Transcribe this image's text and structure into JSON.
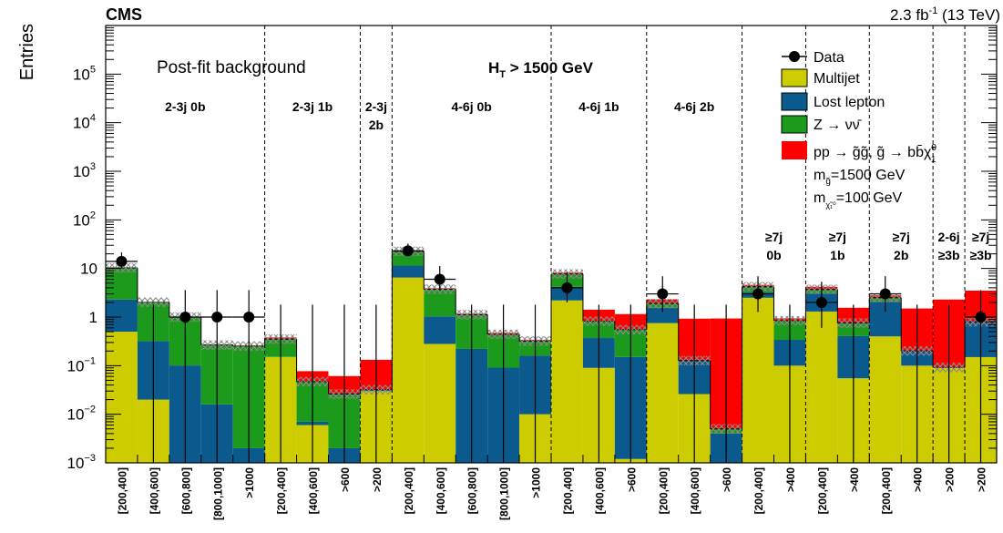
{
  "header": {
    "experiment": "CMS",
    "luminosity_base": "2.3 fb",
    "luminosity_exp": "-1",
    "luminosity_rest": " (13 TeV)",
    "plot_label": "Post-fit background",
    "ht_cut_main": "H",
    "ht_cut_sub": "T",
    "ht_cut_rest": " > 1500 GeV"
  },
  "legend": {
    "data": "Data",
    "multijet": "Multijet",
    "lost_lepton": "Lost lepton",
    "znunu_main": "Z → νν̄",
    "signal_main": "pp → g̃g̃, g̃ → bb̄χ̃",
    "signal_sup": "0",
    "signal_sub": "1",
    "mass_gluino_main": "m",
    "mass_gluino_sub": "g̃",
    "mass_gluino_rest": "=1500 GeV",
    "mass_lsp_main": "m",
    "mass_lsp_sub": "χ̃₁⁰",
    "mass_lsp_rest": "=100 GeV"
  },
  "colors": {
    "multijet": "#cccc00",
    "lost_lepton": "#0b5a8e",
    "znunu": "#1b9a1b",
    "signal": "#ff0000",
    "data": "#000000",
    "uncertainty_hatch": "#888888"
  },
  "chart_data": {
    "type": "bar",
    "stacked": true,
    "log_y": true,
    "ylim": [
      0.001,
      1000000
    ],
    "ylabel": "Entries",
    "ytick_labels": [
      {
        "mant": "10",
        "exp": "−3",
        "v": 0.001
      },
      {
        "mant": "10",
        "exp": "−2",
        "v": 0.01
      },
      {
        "mant": "10",
        "exp": "−1",
        "v": 0.1
      },
      {
        "mant": "1",
        "exp": "",
        "v": 1
      },
      {
        "mant": "10",
        "exp": "",
        "v": 10
      },
      {
        "mant": "10",
        "exp": "2",
        "v": 100
      },
      {
        "mant": "10",
        "exp": "3",
        "v": 1000
      },
      {
        "mant": "10",
        "exp": "4",
        "v": 10000
      },
      {
        "mant": "10",
        "exp": "5",
        "v": 100000
      }
    ],
    "categories": [
      "[200,400]",
      "[400,600]",
      "[600,800]",
      "[800,1000]",
      ">1000",
      "[200,400]",
      "[400,600]",
      ">600",
      ">200",
      "[200,400]",
      "[400,600]",
      "[600,800]",
      "[800,1000]",
      ">1000",
      "[200,400]",
      "[400,600]",
      ">600",
      "[200,400]",
      "[400,600]",
      ">600",
      "[200,400]",
      ">400",
      "[200,400]",
      ">400",
      "[200,400]",
      ">400",
      ">200",
      ">200"
    ],
    "series": [
      {
        "name": "Multijet",
        "values": [
          0.5,
          0.02,
          0.001,
          0.001,
          0.001,
          0.15,
          0.006,
          0.001,
          0.03,
          6.5,
          0.28,
          0.001,
          0.001,
          0.01,
          2.2,
          0.09,
          0.0012,
          0.75,
          0.026,
          0.001,
          2.5,
          0.1,
          1.3,
          0.055,
          0.4,
          0.1,
          0.09,
          0.15
        ]
      },
      {
        "name": "Lost lepton",
        "values": [
          1.8,
          0.3,
          0.1,
          0.015,
          0.001,
          0.001,
          0.001,
          0.001,
          0.001,
          5.0,
          0.75,
          0.22,
          0.09,
          0.15,
          2.0,
          0.28,
          0.15,
          0.8,
          0.1,
          0.003,
          0.7,
          0.24,
          1.8,
          0.35,
          1.7,
          0.1,
          0.001,
          0.65
        ]
      },
      {
        "name": "Z → νν̄",
        "values": [
          8.0,
          1.7,
          0.9,
          0.25,
          0.25,
          0.2,
          0.04,
          0.024,
          0.001,
          11.0,
          2.7,
          0.9,
          0.35,
          0.16,
          3.5,
          0.45,
          0.4,
          0.35,
          0.001,
          0.001,
          1.0,
          0.5,
          0.6,
          0.35,
          0.4,
          0.001,
          0.001,
          0.001
        ]
      },
      {
        "name": "pp → g̃g̃, g̃ → bb̄χ̃₁⁰",
        "values": [
          0.05,
          0.02,
          0.01,
          0.005,
          0.01,
          0.03,
          0.03,
          0.035,
          0.1,
          0.5,
          0.2,
          0.05,
          0.03,
          0.02,
          0.5,
          0.6,
          0.6,
          0.4,
          0.8,
          0.93,
          0.4,
          0.1,
          0.5,
          0.8,
          0.3,
          1.3,
          2.2,
          2.7
        ]
      },
      {
        "name": "Data",
        "values": [
          14,
          null,
          1,
          1,
          1,
          null,
          null,
          null,
          null,
          23,
          6,
          null,
          null,
          null,
          4,
          null,
          null,
          3,
          null,
          null,
          3,
          null,
          2,
          null,
          3,
          null,
          null,
          1
        ]
      }
    ],
    "hatch_bins": [
      0,
      1,
      2,
      3,
      4,
      5,
      6,
      7,
      8,
      9,
      10,
      11,
      12,
      13,
      14,
      15,
      16,
      17,
      18,
      19,
      20,
      21,
      22,
      23,
      24,
      25,
      26,
      27
    ],
    "regions": [
      {
        "label": "2-3j 0b",
        "start": 0,
        "end": 5
      },
      {
        "label": "2-3j 1b",
        "start": 5,
        "end": 8
      },
      {
        "label_l1": "2-3j",
        "label_l2": "2b",
        "start": 8,
        "end": 9
      },
      {
        "label": "4-6j 0b",
        "start": 9,
        "end": 14
      },
      {
        "label": "4-6j 1b",
        "start": 14,
        "end": 17
      },
      {
        "label": "4-6j 2b",
        "start": 17,
        "end": 20
      },
      {
        "label_l1": "≥7j",
        "label_l2": "0b",
        "start": 20,
        "end": 22
      },
      {
        "label_l1": "≥7j",
        "label_l2": "1b",
        "start": 22,
        "end": 24
      },
      {
        "label_l1": "≥7j",
        "label_l2": "2b",
        "start": 24,
        "end": 26
      },
      {
        "label_l1": "2-6j",
        "label_l2": "≥3b",
        "start": 26,
        "end": 27
      },
      {
        "label_l1": "≥7j",
        "label_l2": "≥3b",
        "start": 27,
        "end": 28
      }
    ],
    "legend_position": "top-right"
  }
}
